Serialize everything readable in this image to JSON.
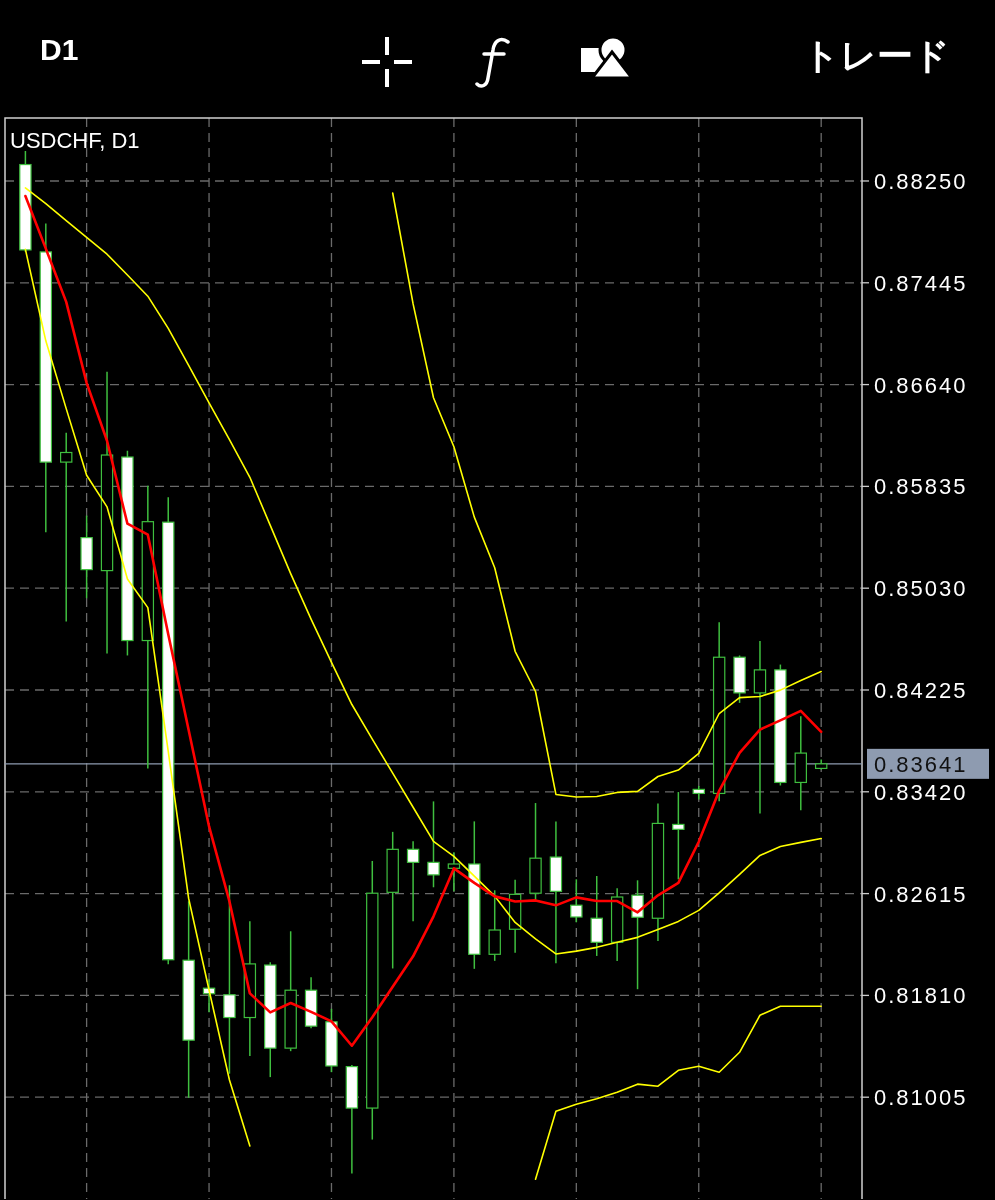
{
  "chart_data": {
    "type": "candlestick",
    "title": "USDCHF, D1",
    "annotations": [
      "D1",
      "トレード"
    ],
    "tick_labels": "y",
    "grid": true,
    "categories": [
      null,
      null,
      null,
      null,
      null,
      null,
      null,
      null,
      null,
      null,
      null,
      null,
      null,
      null,
      null,
      null,
      null,
      null,
      null,
      null,
      null,
      null,
      null,
      null,
      null,
      null,
      null,
      null,
      null,
      null,
      null,
      null,
      null,
      null,
      null,
      null,
      null,
      null,
      null,
      null
    ],
    "ohlc": [
      [
        0.8838,
        0.88487,
        0.87689,
        0.87705
      ],
      [
        0.87689,
        0.87913,
        0.85473,
        0.86027
      ],
      [
        0.86027,
        0.86259,
        0.84766,
        0.86103
      ],
      [
        0.8543,
        0.85604,
        0.84951,
        0.85177
      ],
      [
        0.85169,
        0.86741,
        0.84513,
        0.86083
      ],
      [
        0.86067,
        0.86117,
        0.84498,
        0.84616
      ],
      [
        0.84616,
        0.85841,
        0.83605,
        0.85556
      ],
      [
        0.85552,
        0.8575,
        0.82056,
        0.82092
      ],
      [
        0.82088,
        0.82554,
        0.81,
        0.81456
      ],
      [
        0.81867,
        0.81938,
        0.81677,
        0.81823
      ],
      [
        0.81815,
        0.82681,
        0.81191,
        0.81635
      ],
      [
        0.81635,
        0.82396,
        0.8133,
        0.82059
      ],
      [
        0.8205,
        0.82072,
        0.81164,
        0.81393
      ],
      [
        0.81393,
        0.82317,
        0.81369,
        0.81851
      ],
      [
        0.81851,
        0.81954,
        0.81551,
        0.81567
      ],
      [
        0.81601,
        0.81704,
        0.81203,
        0.81252
      ],
      [
        0.81247,
        0.81259,
        0.80401,
        0.80919
      ],
      [
        0.80919,
        0.82873,
        0.8067,
        0.82618
      ],
      [
        0.82625,
        0.83103,
        0.82023,
        0.82965
      ],
      [
        0.82965,
        0.83028,
        0.82396,
        0.82862
      ],
      [
        0.82862,
        0.83344,
        0.82665,
        0.82763
      ],
      [
        0.82815,
        0.82941,
        0.82633,
        0.82849
      ],
      [
        0.82849,
        0.83186,
        0.8202,
        0.82135
      ],
      [
        0.82135,
        0.82641,
        0.82083,
        0.82327
      ],
      [
        0.82333,
        0.82724,
        0.82147,
        0.82609
      ],
      [
        0.82618,
        0.83331,
        0.82549,
        0.82895
      ],
      [
        0.82904,
        0.83186,
        0.82064,
        0.82633
      ],
      [
        0.82523,
        0.82728,
        0.82388,
        0.8243
      ],
      [
        0.8242,
        0.82754,
        0.82122,
        0.8223
      ],
      [
        0.8223,
        0.82657,
        0.82082,
        0.82588
      ],
      [
        0.82602,
        0.8272,
        0.81859,
        0.82428
      ],
      [
        0.8242,
        0.83328,
        0.8224,
        0.8317
      ],
      [
        0.83162,
        0.83418,
        0.82728,
        0.83123
      ],
      [
        0.83439,
        0.83465,
        0.8336,
        0.83407
      ],
      [
        0.83407,
        0.84761,
        0.83346,
        0.84484
      ],
      [
        0.84484,
        0.84498,
        0.84123,
        0.84202
      ],
      [
        0.84202,
        0.84613,
        0.83249,
        0.84384
      ],
      [
        0.84384,
        0.84426,
        0.8347,
        0.83494
      ],
      [
        0.83494,
        0.84018,
        0.83275,
        0.83726
      ],
      [
        0.83605,
        0.83676,
        0.83597,
        0.83641
      ]
    ],
    "series": [
      {
        "type": "line",
        "color": "#ffff00",
        "values": [
          null,
          null,
          null,
          null,
          null,
          null,
          null,
          null,
          null,
          null,
          null,
          null,
          null,
          null,
          null,
          null,
          null,
          null,
          0.88155,
          0.87278,
          0.86536,
          0.86148,
          0.85592,
          0.85192,
          0.84531,
          0.84213,
          0.83399,
          0.83379,
          0.83383,
          0.83415,
          0.83423,
          0.83541,
          0.83592,
          0.83723,
          0.84039,
          0.84165,
          0.84173,
          0.84224,
          0.843,
          0.84371
        ]
      },
      {
        "type": "line",
        "color": "#ffff00",
        "values": [
          0.88195,
          0.8807,
          0.87936,
          0.87804,
          0.87671,
          0.87507,
          0.87339,
          0.87085,
          0.86791,
          0.86496,
          0.86204,
          0.85907,
          0.85527,
          0.85145,
          0.84785,
          0.84443,
          0.8411,
          0.83836,
          0.83567,
          0.83298,
          0.83028,
          0.82909,
          0.82753,
          0.82595,
          0.82387,
          0.82257,
          0.82138,
          0.8216,
          0.8219,
          0.8223,
          0.82269,
          0.82332,
          0.82395,
          0.82482,
          0.82621,
          0.82767,
          0.82917,
          0.82988,
          0.8302,
          0.83051
        ]
      },
      {
        "type": "line",
        "color": "#ffff00",
        "values": [
          0.87709,
          0.86986,
          0.8645,
          0.85923,
          0.85673,
          0.85102,
          0.84876,
          0.83739,
          0.82577,
          0.81853,
          0.81141,
          0.80619,
          null,
          null,
          null,
          null,
          null,
          null,
          null,
          null,
          null,
          null,
          null,
          null,
          null,
          0.80357,
          0.80894,
          0.8095,
          0.80992,
          0.81044,
          0.81108,
          0.81092,
          0.81218,
          0.8125,
          0.81202,
          0.8136,
          0.81653,
          0.81724,
          0.81724,
          0.81724
        ]
      },
      {
        "type": "line",
        "color": "#ff0000",
        "values": [
          0.88131,
          0.87715,
          0.87294,
          0.86654,
          0.86196,
          0.8554,
          0.85453,
          0.84665,
          0.83909,
          0.83146,
          0.82553,
          0.81826,
          0.81676,
          0.8175,
          0.8168,
          0.81605,
          0.81412,
          0.81637,
          0.81878,
          0.82119,
          0.82435,
          0.82814,
          0.827,
          0.82593,
          0.82553,
          0.82561,
          0.82522,
          0.82585,
          0.82556,
          0.82556,
          0.82467,
          0.82601,
          0.827,
          0.83025,
          0.83428,
          0.83728,
          0.83912,
          0.83985,
          0.8406,
          0.83894
        ]
      }
    ],
    "ylim": [
      0.802,
      0.88748
    ],
    "yticks": [
      {
        "value": 0.8825,
        "label": "0.88250"
      },
      {
        "value": 0.87445,
        "label": "0.87445"
      },
      {
        "value": 0.8664,
        "label": "0.86640"
      },
      {
        "value": 0.85835,
        "label": "0.85835"
      },
      {
        "value": 0.8503,
        "label": "0.85030"
      },
      {
        "value": 0.84225,
        "label": "0.84225"
      },
      {
        "value": 0.8342,
        "label": "0.83420"
      },
      {
        "value": 0.82615,
        "label": "0.82615"
      },
      {
        "value": 0.8181,
        "label": "0.81810"
      },
      {
        "value": 0.81005,
        "label": "0.81005"
      }
    ],
    "ref_lines": [
      {
        "axis": "y",
        "value": 0.83641,
        "label": "0.83641",
        "color": "#8e9bb0"
      }
    ]
  }
}
